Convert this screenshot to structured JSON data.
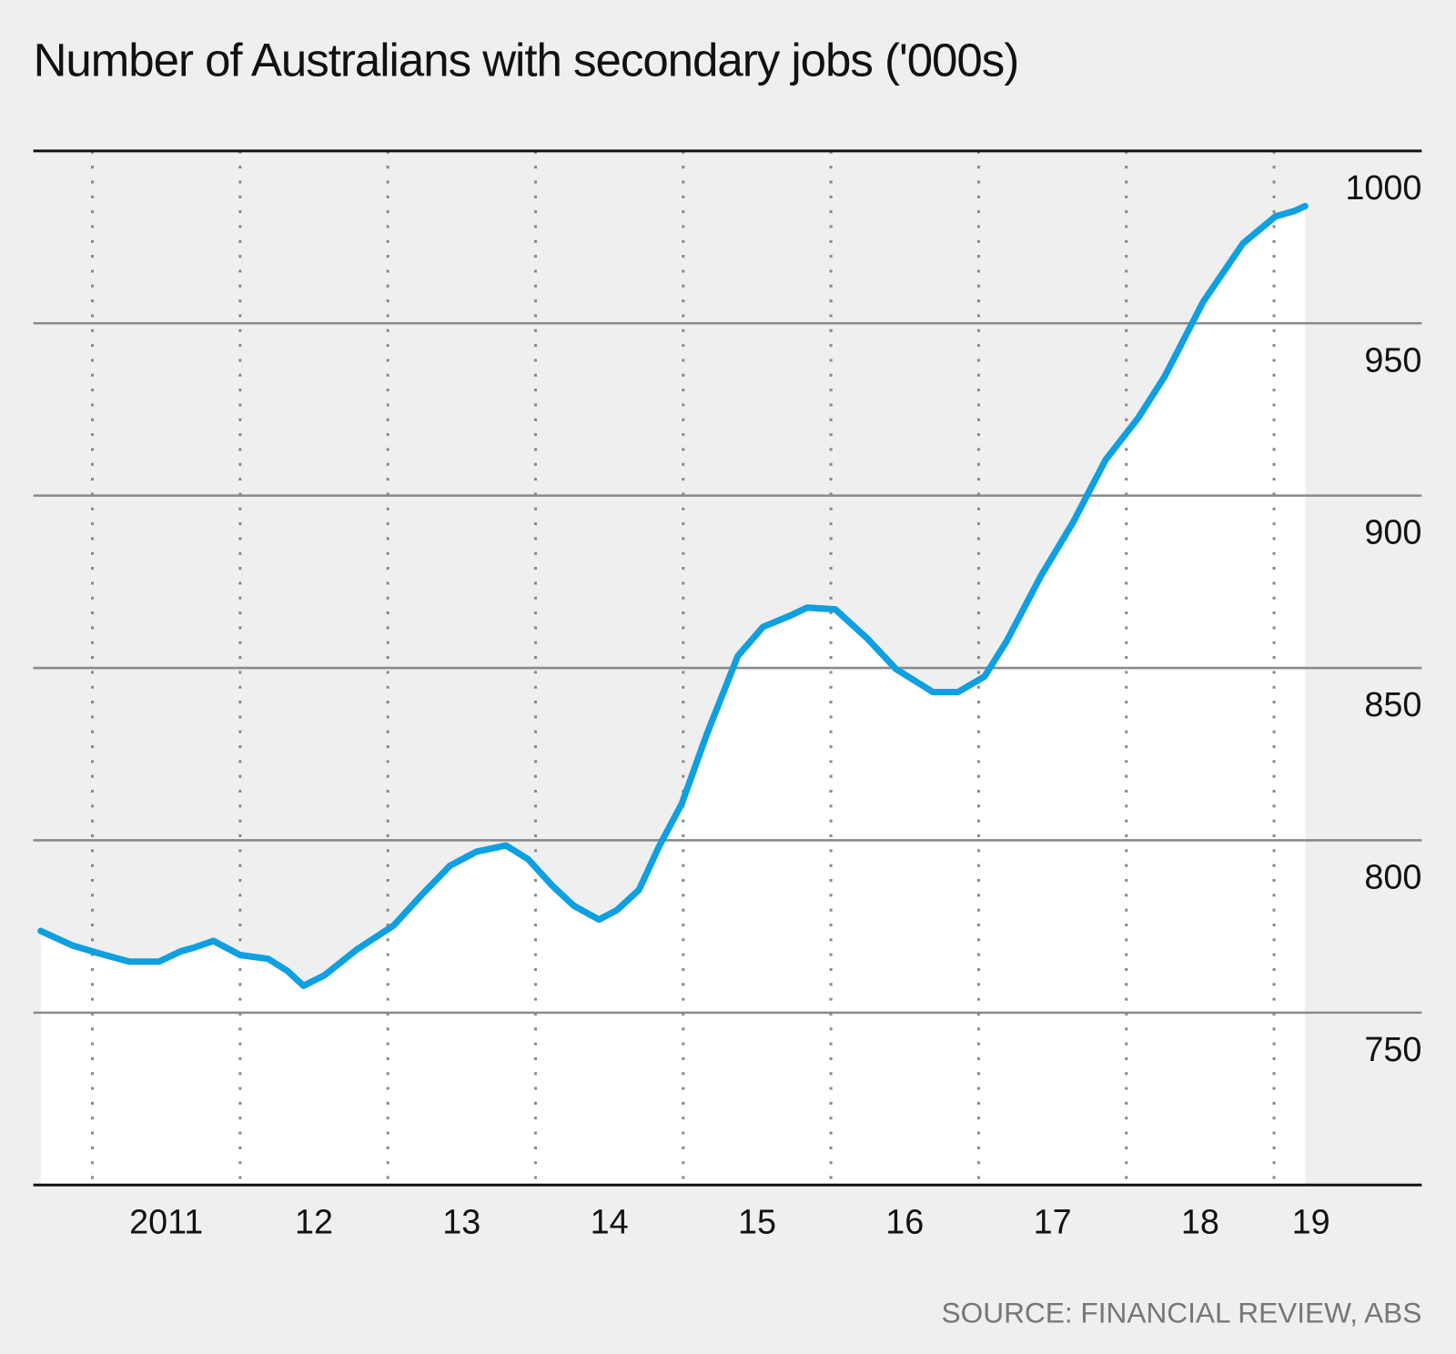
{
  "chart_data": {
    "type": "line",
    "title": "Number of Australians with secondary jobs ('000s)",
    "source": "SOURCE: FINANCIAL REVIEW, ABS",
    "series": [
      {
        "color": "#0ea0e0",
        "x": [
          2010.65,
          2010.87,
          2011.06,
          2011.25,
          2011.45,
          2011.6,
          2011.69,
          2011.82,
          2012.0,
          2012.19,
          2012.32,
          2012.43,
          2012.57,
          2012.79,
          2013.04,
          2013.23,
          2013.42,
          2013.6,
          2013.8,
          2013.95,
          2014.11,
          2014.26,
          2014.43,
          2014.55,
          2014.7,
          2014.84,
          2014.99,
          2015.16,
          2015.37,
          2015.54,
          2015.72,
          2015.84,
          2016.03,
          2016.25,
          2016.44,
          2016.69,
          2016.86,
          2017.04,
          2017.19,
          2017.42,
          2017.64,
          2017.86,
          2018.08,
          2018.26,
          2018.52,
          2018.79,
          2019.01,
          2019.14,
          2019.21
        ],
        "values": [
          773.7,
          769.4,
          767.0,
          764.8,
          764.8,
          767.8,
          768.9,
          770.8,
          766.7,
          765.6,
          762.1,
          757.8,
          760.8,
          768.3,
          775.3,
          784.2,
          792.6,
          796.7,
          798.5,
          794.5,
          787.0,
          781.0,
          777.0,
          779.7,
          785.6,
          798.5,
          810.6,
          830.8,
          853.5,
          861.9,
          865.1,
          867.5,
          867.0,
          858.4,
          849.7,
          843.0,
          843.0,
          847.5,
          857.8,
          876.6,
          892.3,
          910.4,
          922.5,
          934.6,
          956.2,
          973.2,
          981.0,
          982.6,
          984.0
        ]
      }
    ],
    "area_fill": "#ffffff",
    "xlim": [
      2010.6,
      2020.0
    ],
    "xticks": [
      {
        "value": 2011.5,
        "label": "2011"
      },
      {
        "value": 2012.5,
        "label": "12"
      },
      {
        "value": 2013.5,
        "label": "13"
      },
      {
        "value": 2014.5,
        "label": "14"
      },
      {
        "value": 2015.5,
        "label": "15"
      },
      {
        "value": 2016.5,
        "label": "16"
      },
      {
        "value": 2017.5,
        "label": "17"
      },
      {
        "value": 2018.5,
        "label": "18"
      },
      {
        "value": 2019.25,
        "label": "19"
      }
    ],
    "x_gridlines": [
      2011,
      2012,
      2013,
      2014,
      2015,
      2016,
      2017,
      2018,
      2019
    ],
    "ylim": [
      700,
      1000
    ],
    "yticks": [
      750,
      800,
      850,
      900,
      950,
      1000
    ],
    "grid": true
  }
}
